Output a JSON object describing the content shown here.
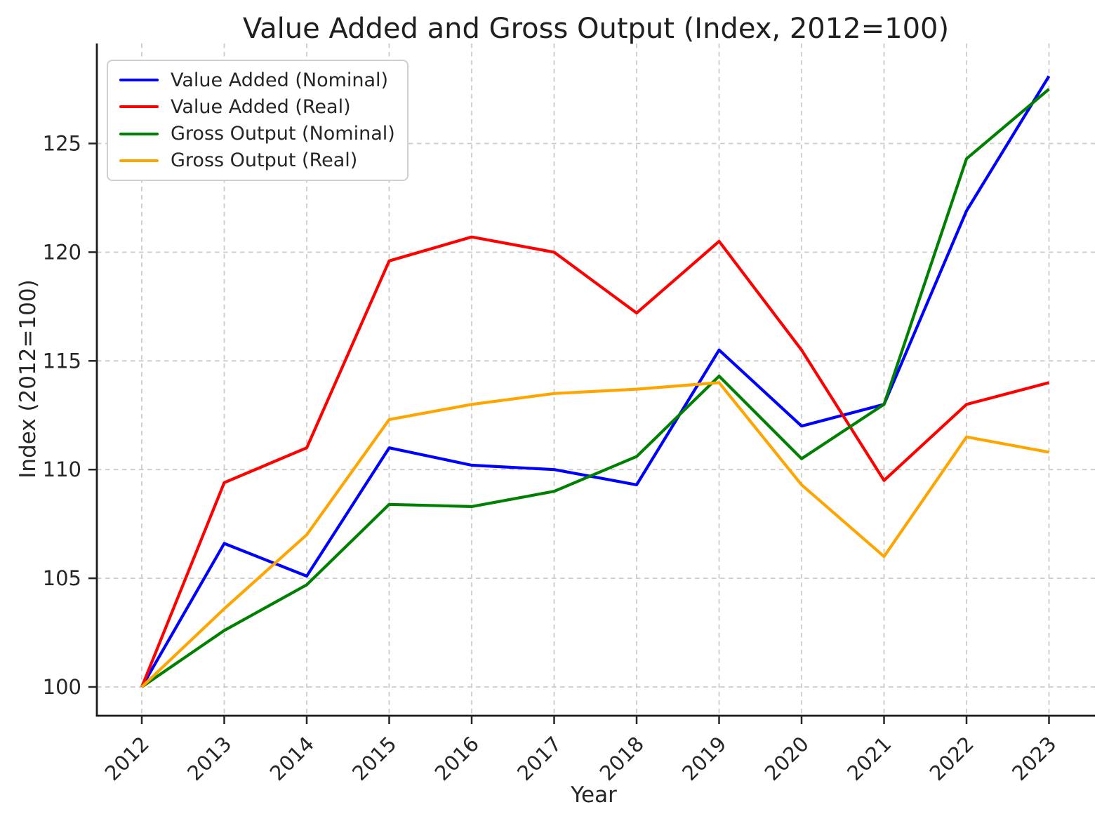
{
  "page": {
    "background": "#ffffff"
  },
  "chart_data": {
    "type": "line",
    "title": "Value Added and Gross Output (Index, 2012=100)",
    "xlabel": "Year",
    "ylabel": "Index (2012=100)",
    "x": [
      2012,
      2013,
      2014,
      2015,
      2016,
      2017,
      2018,
      2019,
      2020,
      2021,
      2022,
      2023
    ],
    "xtick_labels": [
      "2012",
      "2013",
      "2014",
      "2015",
      "2016",
      "2017",
      "2018",
      "2019",
      "2020",
      "2021",
      "2022",
      "2023"
    ],
    "ytick_values": [
      100,
      105,
      110,
      115,
      120,
      125
    ],
    "ytick_labels": [
      "100",
      "105",
      "110",
      "115",
      "120",
      "125"
    ],
    "xlim": [
      2011.45,
      2023.55
    ],
    "ylim": [
      98.7,
      129.6
    ],
    "grid": "dashed both axes, light gray",
    "legend_position": "upper-left",
    "series": [
      {
        "name": "Value Added (Nominal)",
        "color": "#0000ff",
        "values": [
          100,
          106.6,
          105.1,
          111.0,
          110.2,
          110.0,
          109.3,
          115.5,
          112.0,
          113.0,
          121.9,
          128.1
        ]
      },
      {
        "name": "Value Added (Real)",
        "color": "#ff0000",
        "values": [
          100,
          109.4,
          111.0,
          119.6,
          120.7,
          120.0,
          117.2,
          120.5,
          115.5,
          109.5,
          113.0,
          114.0
        ]
      },
      {
        "name": "Gross Output (Nominal)",
        "color": "#008000",
        "values": [
          100,
          102.6,
          104.7,
          108.4,
          108.3,
          109.0,
          110.6,
          114.3,
          110.5,
          113.0,
          124.3,
          127.5
        ]
      },
      {
        "name": "Gross Output (Real)",
        "color": "#ffa500",
        "values": [
          100,
          103.6,
          107.0,
          112.3,
          113.0,
          113.5,
          113.7,
          114.0,
          109.3,
          106.0,
          111.5,
          110.8
        ]
      }
    ]
  }
}
